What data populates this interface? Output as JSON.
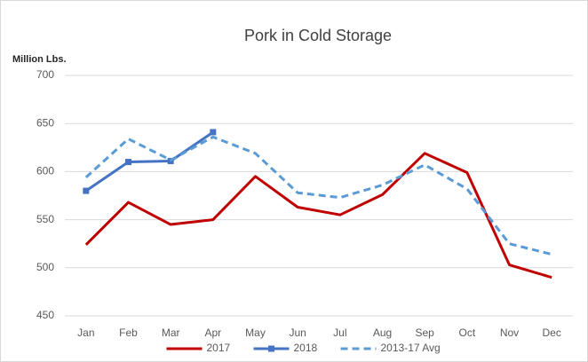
{
  "chart_data": {
    "type": "line",
    "title": "Pork in Cold Storage",
    "y_label": "Million Lbs.",
    "categories": [
      "Jan",
      "Feb",
      "Mar",
      "Apr",
      "May",
      "Jun",
      "Jul",
      "Aug",
      "Sep",
      "Oct",
      "Nov",
      "Dec"
    ],
    "series": [
      {
        "name": "2017",
        "color": "#c00000",
        "dash": false,
        "marker": false,
        "values": [
          524,
          568,
          545,
          550,
          595,
          563,
          555,
          576,
          619,
          599,
          503,
          490
        ]
      },
      {
        "name": "2018",
        "color": "#4472c4",
        "dash": false,
        "marker": true,
        "values": [
          580,
          610,
          611,
          641,
          null,
          null,
          null,
          null,
          null,
          null,
          null,
          null
        ]
      },
      {
        "name": "2013-17 Avg",
        "color": "#5b9bd5",
        "dash": true,
        "marker": false,
        "values": [
          594,
          634,
          612,
          636,
          619,
          578,
          573,
          586,
          607,
          582,
          525,
          514
        ]
      }
    ],
    "ylim": [
      450,
      700
    ],
    "yticks": [
      450,
      500,
      550,
      600,
      650,
      700
    ],
    "grid": true,
    "legend": "bottom"
  }
}
